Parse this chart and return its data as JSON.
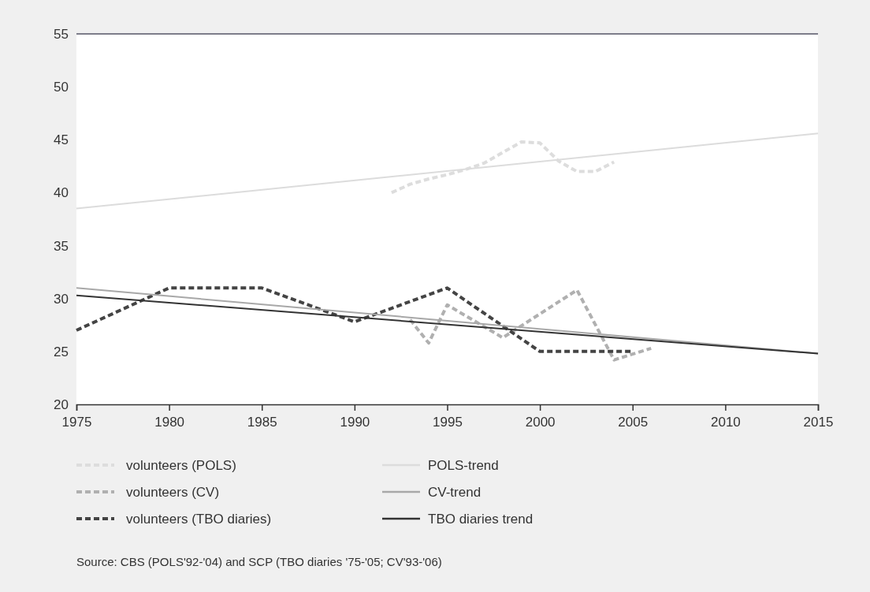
{
  "chart_data": {
    "type": "line",
    "xlim": [
      1975,
      2015
    ],
    "xticks": [
      1975,
      1980,
      1985,
      1990,
      1995,
      2000,
      2005,
      2010,
      2015
    ],
    "ylim": [
      20,
      55
    ],
    "yticks": [
      20,
      25,
      30,
      35,
      40,
      45,
      50,
      55
    ],
    "grid": false,
    "legend": "bottom",
    "marker": "none",
    "series": [
      {
        "name": "volunteers (POLS)",
        "color": "#dddddd",
        "line_style": "dashed",
        "x": [
          1992,
          1993,
          1994,
          1995,
          1996,
          1997,
          1998,
          1999,
          2000,
          2001,
          2002,
          2003,
          2004
        ],
        "values": [
          40,
          40.8,
          41.3,
          41.7,
          42.2,
          42.8,
          43.8,
          44.8,
          44.7,
          43,
          42,
          42,
          42.9
        ]
      },
      {
        "name": "volunteers (CV)",
        "color": "#b0b0b0",
        "line_style": "dashed",
        "x": [
          1993,
          1994,
          1995,
          1998,
          2002,
          2004,
          2006
        ],
        "values": [
          28,
          25.8,
          29.4,
          26.3,
          30.8,
          24.2,
          25.3
        ]
      },
      {
        "name": "volunteers (TBO diaries)",
        "color": "#444444",
        "line_style": "dashed",
        "x": [
          1975,
          1980,
          1985,
          1990,
          1995,
          2000,
          2005
        ],
        "values": [
          27,
          31,
          31,
          27.8,
          31,
          25,
          25
        ]
      },
      {
        "name": "POLS-trend",
        "color": "#dcdcdc",
        "line_style": "solid",
        "x": [
          1975,
          2015
        ],
        "values": [
          38.5,
          45.6
        ]
      },
      {
        "name": "CV-trend",
        "color": "#a8a8a8",
        "line_style": "solid",
        "x": [
          1975,
          2015
        ],
        "values": [
          31,
          24.8
        ]
      },
      {
        "name": "TBO diaries trend",
        "color": "#333333",
        "line_style": "solid",
        "x": [
          1975,
          2015
        ],
        "values": [
          30.3,
          24.8
        ]
      }
    ],
    "annotations": [
      "Source: CBS (POLS'92-'04) and SCP (TBO diaries '75-'05; CV'93-'06)"
    ]
  }
}
